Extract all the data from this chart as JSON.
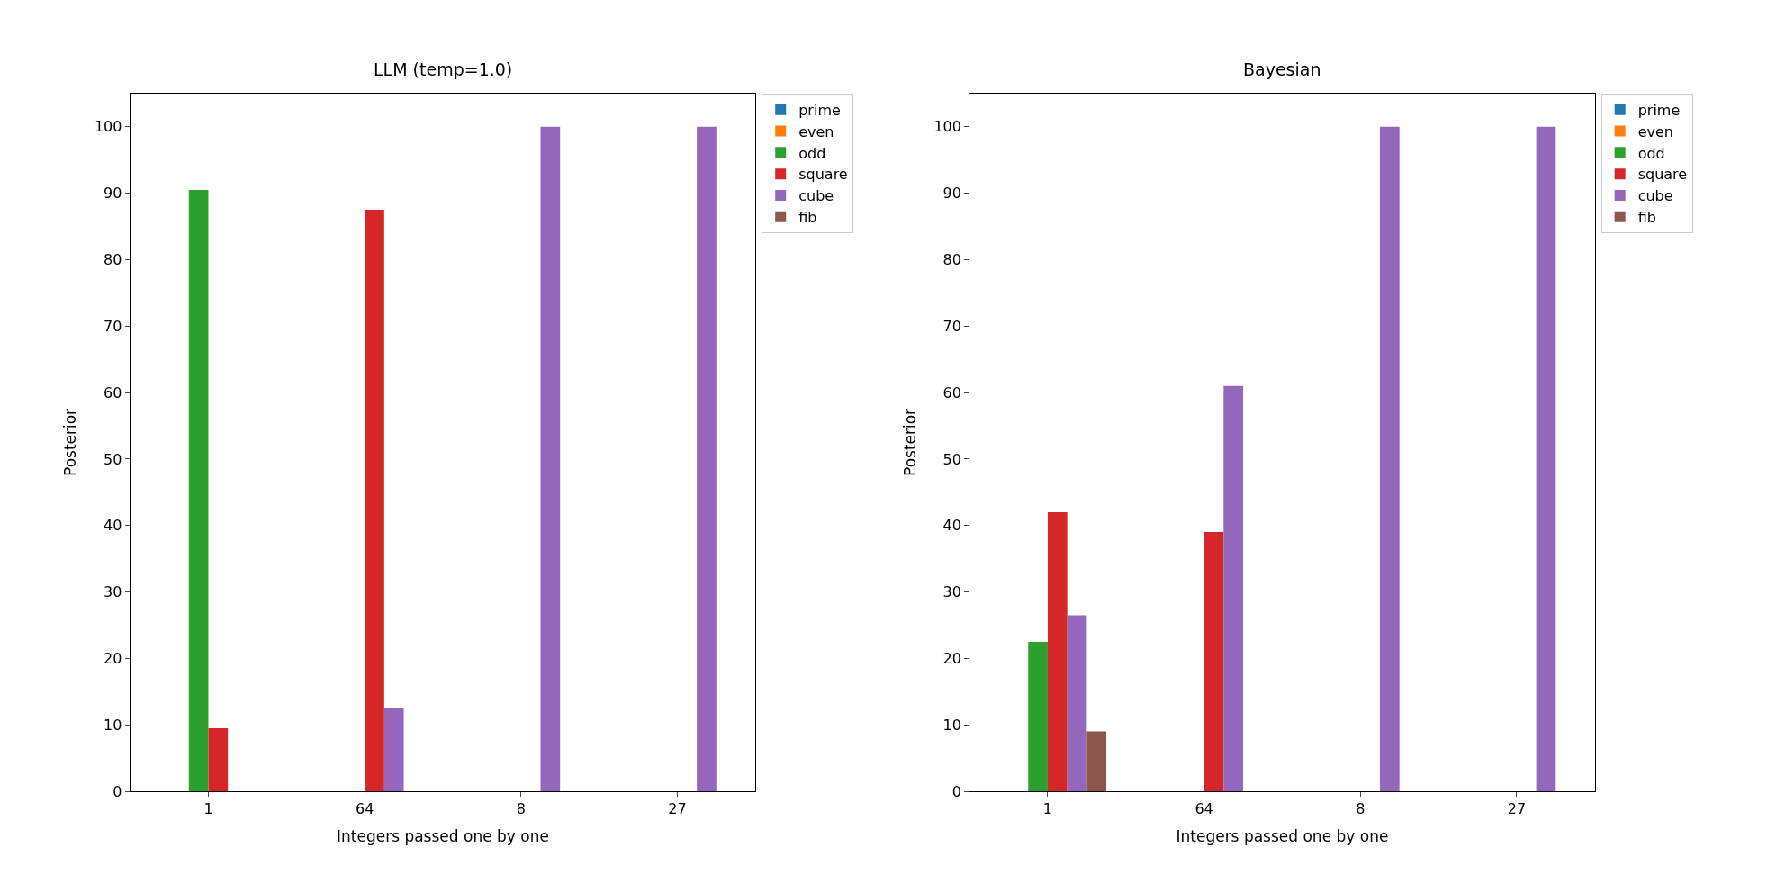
{
  "chart_data": [
    {
      "type": "bar",
      "title": "LLM (temp=1.0)",
      "xlabel": "Integers passed one by one",
      "ylabel": "Posterior",
      "categories": [
        "1",
        "64",
        "8",
        "27"
      ],
      "ylim": [
        0,
        105
      ],
      "yticks": [
        0,
        10,
        20,
        30,
        40,
        50,
        60,
        70,
        80,
        90,
        100
      ],
      "legend": "right",
      "series": [
        {
          "name": "prime",
          "color": "#1f77b4",
          "values": [
            0,
            0,
            0,
            0
          ]
        },
        {
          "name": "even",
          "color": "#ff7f0e",
          "values": [
            0,
            0,
            0,
            0
          ]
        },
        {
          "name": "odd",
          "color": "#2ca02c",
          "values": [
            90.5,
            0,
            0,
            0
          ]
        },
        {
          "name": "square",
          "color": "#d62728",
          "values": [
            9.5,
            87.5,
            0,
            0
          ]
        },
        {
          "name": "cube",
          "color": "#9467bd",
          "values": [
            0,
            12.5,
            100,
            100
          ]
        },
        {
          "name": "fib",
          "color": "#8c564b",
          "values": [
            0,
            0,
            0,
            0
          ]
        }
      ]
    },
    {
      "type": "bar",
      "title": "Bayesian",
      "xlabel": "Integers passed one by one",
      "ylabel": "Posterior",
      "categories": [
        "1",
        "64",
        "8",
        "27"
      ],
      "ylim": [
        0,
        105
      ],
      "yticks": [
        0,
        10,
        20,
        30,
        40,
        50,
        60,
        70,
        80,
        90,
        100
      ],
      "legend": "right",
      "series": [
        {
          "name": "prime",
          "color": "#1f77b4",
          "values": [
            0,
            0,
            0,
            0
          ]
        },
        {
          "name": "even",
          "color": "#ff7f0e",
          "values": [
            0,
            0,
            0,
            0
          ]
        },
        {
          "name": "odd",
          "color": "#2ca02c",
          "values": [
            22.5,
            0,
            0,
            0
          ]
        },
        {
          "name": "square",
          "color": "#d62728",
          "values": [
            42,
            39,
            0,
            0
          ]
        },
        {
          "name": "cube",
          "color": "#9467bd",
          "values": [
            26.5,
            61,
            100,
            100
          ]
        },
        {
          "name": "fib",
          "color": "#8c564b",
          "values": [
            9,
            0,
            0,
            0
          ]
        }
      ]
    }
  ]
}
